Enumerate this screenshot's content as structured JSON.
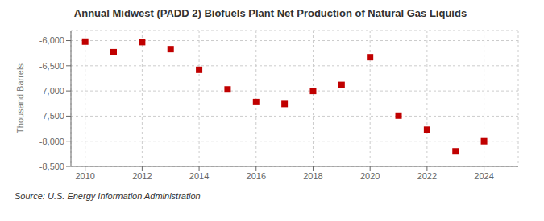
{
  "chart_data": {
    "type": "scatter",
    "title": "Annual Midwest (PADD 2) Biofuels Plant Net Production of Natural Gas Liquids",
    "ylabel": "Thousand Barrels",
    "annotations": [
      "Source: U.S. Energy Information Administration"
    ],
    "x": [
      2010,
      2011,
      2012,
      2013,
      2014,
      2015,
      2016,
      2017,
      2018,
      2019,
      2020,
      2021,
      2022,
      2023,
      2024
    ],
    "values": [
      -6020,
      -6230,
      -6030,
      -6170,
      -6580,
      -6970,
      -7220,
      -7260,
      -7000,
      -6880,
      -6330,
      -7490,
      -7770,
      -8200,
      -8000
    ],
    "color": "#c00000",
    "marker": "square",
    "xlim": [
      2009.5,
      2025.2
    ],
    "ylim": [
      -8500,
      -5800
    ],
    "xticks": [
      2010,
      2012,
      2014,
      2016,
      2018,
      2020,
      2022,
      2024
    ],
    "yticks": [
      {
        "value": -6000,
        "label": "-6,000"
      },
      {
        "value": -6500,
        "label": "-6,500"
      },
      {
        "value": -7000,
        "label": "-7,000"
      },
      {
        "value": -7500,
        "label": "-7,500"
      },
      {
        "value": -8000,
        "label": "-8,000"
      },
      {
        "value": -8500,
        "label": "-8,500"
      }
    ],
    "grid": true
  }
}
